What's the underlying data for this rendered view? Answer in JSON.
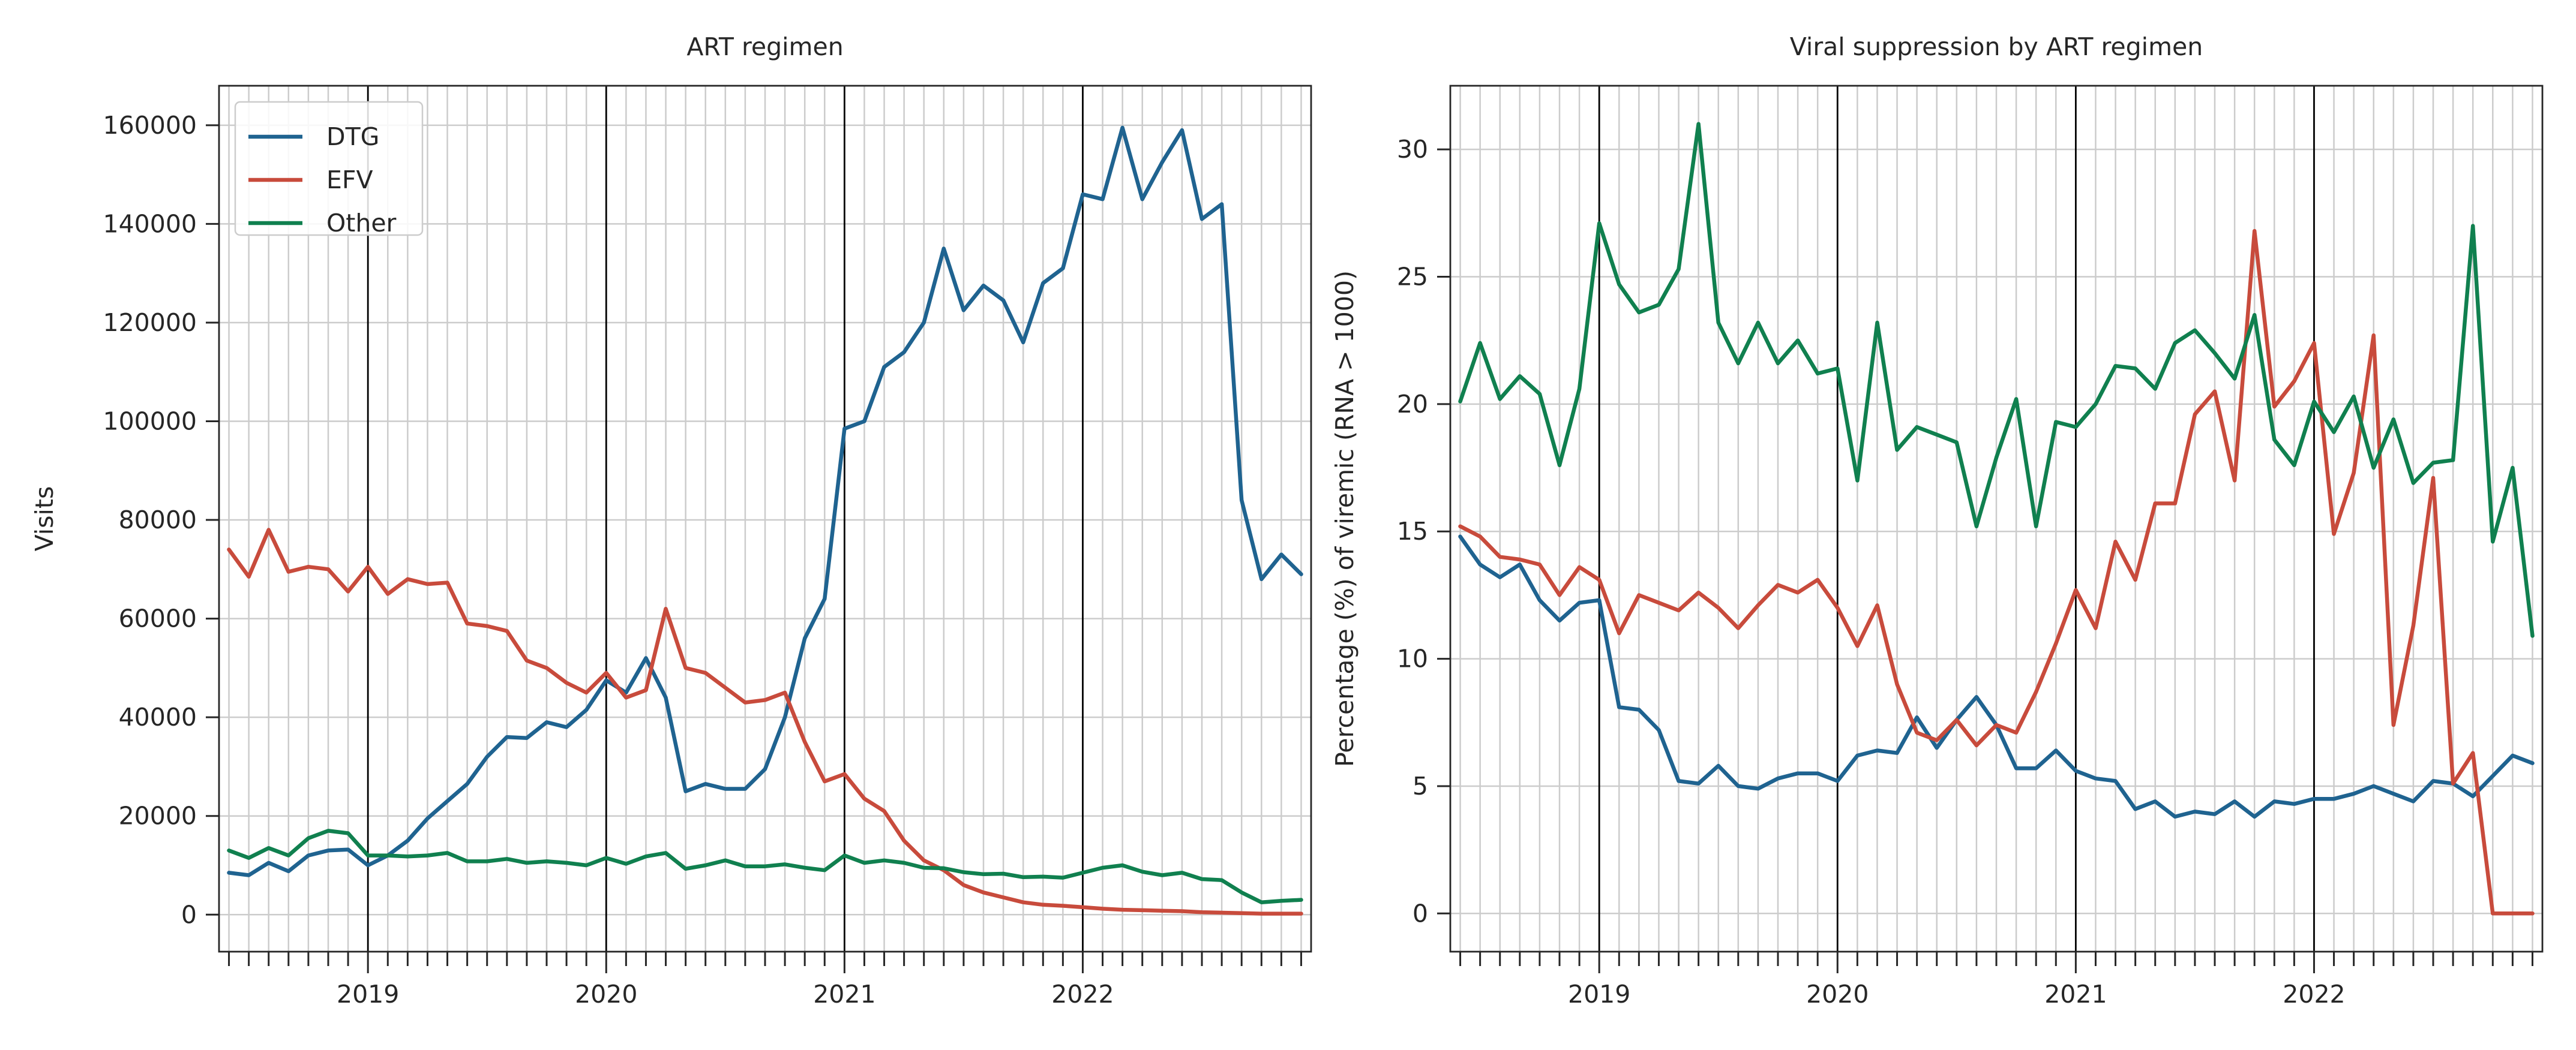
{
  "colors": {
    "DTG": "#1f6390",
    "EFV": "#c84b3c",
    "Other": "#10804f",
    "grid": "#cccccc",
    "year_line": "#000000"
  },
  "chart_data": [
    {
      "type": "line",
      "title": "ART regimen",
      "xlabel": "",
      "ylabel": "Visits",
      "x_start": "2018-06",
      "x_end": "2022-12",
      "x_tick_labels": [
        "2019",
        "2020",
        "2021",
        "2022"
      ],
      "ylim": [
        -7500,
        168000
      ],
      "yticks": [
        0,
        20000,
        40000,
        60000,
        80000,
        100000,
        120000,
        140000,
        160000
      ],
      "ytick_labels": [
        "0",
        "20000",
        "40000",
        "60000",
        "80000",
        "100000",
        "120000",
        "140000",
        "160000"
      ],
      "grid": true,
      "legend": "top-left",
      "series": [
        {
          "name": "DTG",
          "color": "#1f6390",
          "values": [
            8500,
            8000,
            10500,
            8800,
            12000,
            13000,
            13200,
            10000,
            12000,
            15000,
            19500,
            23000,
            26500,
            32000,
            36000,
            35800,
            39000,
            38000,
            41500,
            47500,
            45000,
            52000,
            44000,
            25000,
            26500,
            25500,
            25500,
            29500,
            40000,
            56000,
            64000,
            98500,
            100000,
            111000,
            114000,
            120000,
            135000,
            122500,
            127500,
            124500,
            116000,
            128000,
            131000,
            146000,
            145000,
            159500,
            145000,
            152500,
            159000,
            141000,
            144000,
            84000,
            68000,
            73000,
            69000
          ]
        },
        {
          "name": "EFV",
          "color": "#c84b3c",
          "values": [
            74000,
            68500,
            78000,
            69500,
            70500,
            70000,
            65500,
            70500,
            65000,
            68000,
            67000,
            67300,
            59000,
            58500,
            57500,
            51500,
            50000,
            47000,
            45000,
            49000,
            44000,
            45500,
            62000,
            50000,
            49000,
            46000,
            43000,
            43500,
            45000,
            35000,
            27000,
            28500,
            23500,
            21000,
            15000,
            11000,
            9000,
            6000,
            4500,
            3500,
            2500,
            2000,
            1800,
            1500,
            1200,
            1000,
            900,
            800,
            700,
            500,
            400,
            300,
            200,
            200,
            200
          ]
        },
        {
          "name": "Other",
          "color": "#10804f",
          "values": [
            13000,
            11500,
            13500,
            12000,
            15500,
            17000,
            16500,
            12000,
            12000,
            11800,
            12000,
            12500,
            10800,
            10800,
            11300,
            10500,
            10800,
            10500,
            10000,
            11500,
            10300,
            11800,
            12500,
            9300,
            10000,
            11000,
            9800,
            9800,
            10200,
            9500,
            9000,
            12000,
            10500,
            11000,
            10500,
            9500,
            9400,
            8600,
            8200,
            8300,
            7600,
            7700,
            7500,
            8500,
            9500,
            10000,
            8700,
            8000,
            8500,
            7200,
            7000,
            4500,
            2500,
            2800,
            3000
          ]
        }
      ]
    },
    {
      "type": "line",
      "title": "Viral suppression by ART regimen",
      "xlabel": "",
      "ylabel": "Percentage (%) of viremic (RNA > 1000)",
      "x_start": "2018-06",
      "x_end": "2022-12",
      "x_tick_labels": [
        "2019",
        "2020",
        "2021",
        "2022"
      ],
      "ylim": [
        -1.5,
        32.5
      ],
      "yticks": [
        0,
        5,
        10,
        15,
        20,
        25,
        30
      ],
      "ytick_labels": [
        "0",
        "5",
        "10",
        "15",
        "20",
        "25",
        "30"
      ],
      "grid": true,
      "legend": "none",
      "series": [
        {
          "name": "DTG",
          "color": "#1f6390",
          "values": [
            14.8,
            13.7,
            13.2,
            13.7,
            12.3,
            11.5,
            12.2,
            12.3,
            8.1,
            8.0,
            7.2,
            5.2,
            5.1,
            5.8,
            5.0,
            4.9,
            5.3,
            5.5,
            5.5,
            5.2,
            6.2,
            6.4,
            6.3,
            7.7,
            6.5,
            7.6,
            8.5,
            7.4,
            5.7,
            5.7,
            6.4,
            5.6,
            5.3,
            5.2,
            4.1,
            4.4,
            3.8,
            4.0,
            3.9,
            4.4,
            3.8,
            4.4,
            4.3,
            4.5,
            4.5,
            4.7,
            5.0,
            4.7,
            4.4,
            5.2,
            5.1,
            4.6,
            5.4,
            6.2,
            5.9
          ]
        },
        {
          "name": "EFV",
          "color": "#c84b3c",
          "values": [
            15.2,
            14.8,
            14.0,
            13.9,
            13.7,
            12.5,
            13.6,
            13.1,
            11.0,
            12.5,
            12.2,
            11.9,
            12.6,
            12.0,
            11.2,
            12.1,
            12.9,
            12.6,
            13.1,
            12.0,
            10.5,
            12.1,
            9.0,
            7.1,
            6.8,
            7.6,
            6.6,
            7.4,
            7.1,
            8.7,
            10.6,
            12.7,
            11.2,
            14.6,
            13.1,
            16.1,
            16.1,
            19.6,
            20.5,
            17.0,
            26.8,
            19.9,
            20.9,
            22.4,
            14.9,
            17.3,
            22.7,
            7.4,
            11.3,
            17.1,
            5.1,
            6.3,
            0.0,
            0.0,
            0.0
          ]
        },
        {
          "name": "Other",
          "color": "#10804f",
          "values": [
            20.1,
            22.4,
            20.2,
            21.1,
            20.4,
            17.6,
            20.6,
            27.1,
            24.7,
            23.6,
            23.9,
            25.3,
            31.0,
            23.2,
            21.6,
            23.2,
            21.6,
            22.5,
            21.2,
            21.4,
            17.0,
            23.2,
            18.2,
            19.1,
            18.8,
            18.5,
            15.2,
            17.9,
            20.2,
            15.2,
            19.3,
            19.1,
            20.0,
            21.5,
            21.4,
            20.6,
            22.4,
            22.9,
            22.0,
            21.0,
            23.5,
            18.6,
            17.6,
            20.1,
            18.9,
            20.3,
            17.5,
            19.4,
            16.9,
            17.7,
            17.8,
            27.0,
            14.6,
            17.5,
            10.9
          ]
        }
      ]
    }
  ]
}
